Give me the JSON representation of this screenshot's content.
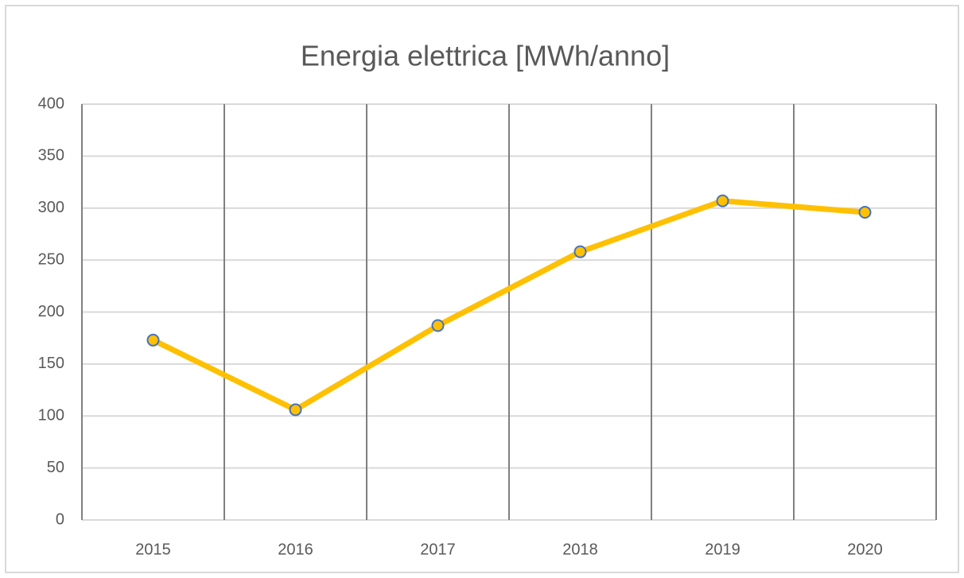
{
  "chart_data": {
    "type": "line",
    "title": "Energia elettrica [MWh/anno]",
    "categories": [
      "2015",
      "2016",
      "2017",
      "2018",
      "2019",
      "2020"
    ],
    "series": [
      {
        "name": "Energia elettrica",
        "color": "#ffc000",
        "values": [
          173,
          106,
          187,
          258,
          307,
          296
        ]
      }
    ],
    "ylim": [
      0,
      400
    ],
    "yticks": [
      0,
      50,
      100,
      150,
      200,
      250,
      300,
      350,
      400
    ],
    "grid": true
  }
}
